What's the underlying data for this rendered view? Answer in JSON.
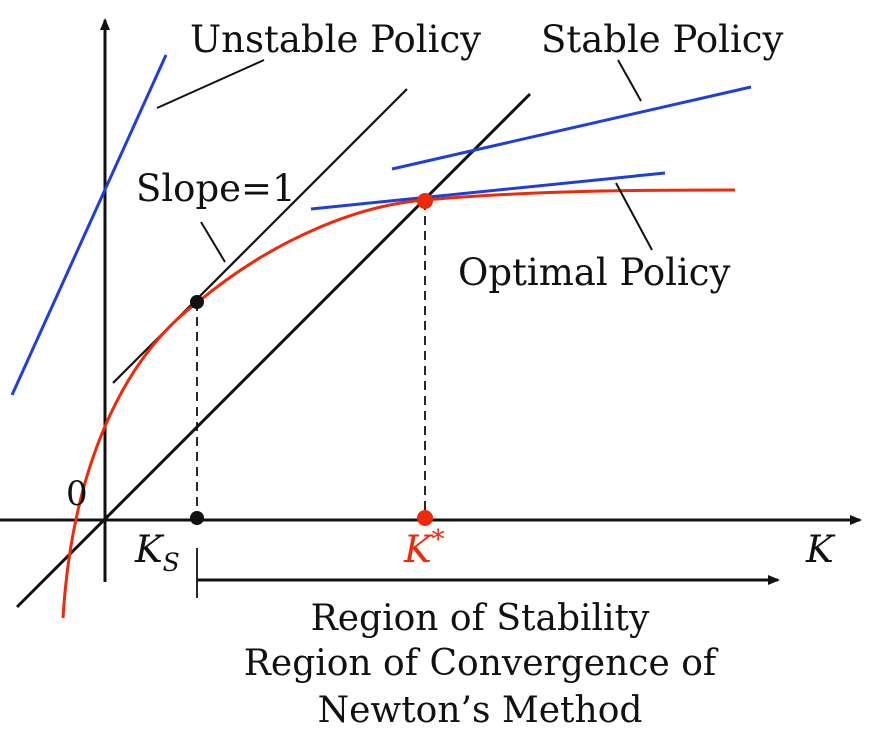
{
  "labels": {
    "unstable_policy": "Unstable Policy",
    "stable_policy": "Stable Policy",
    "slope": "Slope=1",
    "optimal_policy": "Optimal Policy",
    "origin": "0",
    "k_s_main": "K",
    "k_s_sub": "S",
    "k_star_main": "K",
    "k_star_sup": "*",
    "axis_k": "K",
    "region_line1": "Region of Stability",
    "region_line2": "Region of Convergence of",
    "region_line3": "Newton’s Method"
  },
  "colors": {
    "axis": "#111111",
    "curve": "#ee2a0b",
    "policy_line": "#1f3fd8",
    "diagonal": "#111111",
    "k_star": "#ee2a0b"
  }
}
